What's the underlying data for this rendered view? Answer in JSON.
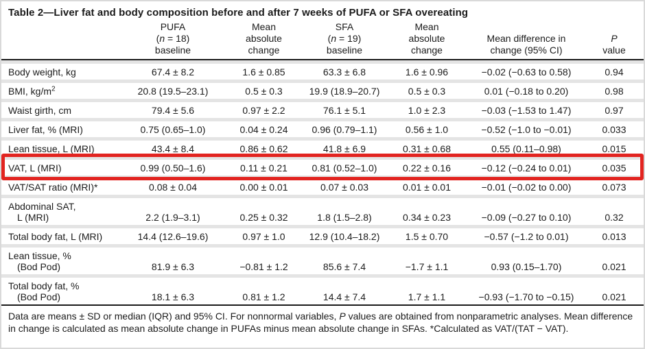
{
  "title": "Table 2—Liver fat and body composition before and after 7 weeks of PUFA or SFA overeating",
  "colors": {
    "highlight_red": "#e22420",
    "row_divider": "#e4e4e4",
    "rule_black": "#1a1a1a",
    "outer_border": "#d9d9d9",
    "text": "#1a1a1a",
    "background": "#ffffff"
  },
  "table": {
    "columns": [
      {
        "name": "row-label",
        "lines": []
      },
      {
        "name": "pufa-baseline",
        "lines": [
          "PUFA",
          "({i}n{/i} = 18)",
          "baseline"
        ]
      },
      {
        "name": "pufa-mean-absolute-change",
        "lines": [
          "Mean",
          "absolute",
          "change"
        ]
      },
      {
        "name": "sfa-baseline",
        "lines": [
          "SFA",
          "({i}n{/i} = 19)",
          "baseline"
        ]
      },
      {
        "name": "sfa-mean-absolute-change",
        "lines": [
          "Mean",
          "absolute",
          "change"
        ]
      },
      {
        "name": "mean-difference-in-change",
        "lines": [
          "Mean difference in",
          "change (95% CI)"
        ]
      },
      {
        "name": "p-value",
        "lines": [
          "{i}P{/i}",
          "value"
        ]
      }
    ],
    "rows": [
      {
        "label": [
          "Body weight, kg"
        ],
        "values": [
          "67.4 ± 8.2",
          "1.6 ± 0.85",
          "63.3 ± 6.8",
          "1.6 ± 0.96",
          "−0.02 (−0.63 to 0.58)",
          "0.94"
        ],
        "highlighted": false
      },
      {
        "label": [
          "BMI, kg/m{sup}2{/sup}"
        ],
        "values": [
          "20.8 (19.5–23.1)",
          "0.5 ± 0.3",
          "19.9 (18.9–20.7)",
          "0.5 ± 0.3",
          "0.01 (−0.18 to 0.20)",
          "0.98"
        ],
        "highlighted": false
      },
      {
        "label": [
          "Waist girth, cm"
        ],
        "values": [
          "79.4 ± 5.6",
          "0.97 ± 2.2",
          "76.1 ± 5.1",
          "1.0 ± 2.3",
          "−0.03 (−1.53 to 1.47)",
          "0.97"
        ],
        "highlighted": false
      },
      {
        "label": [
          "Liver fat, % (MRI)"
        ],
        "values": [
          "0.75 (0.65–1.0)",
          "0.04 ± 0.24",
          "0.96 (0.79–1.1)",
          "0.56 ± 1.0",
          "−0.52 (−1.0 to −0.01)",
          "0.033"
        ],
        "highlighted": false
      },
      {
        "label": [
          "Lean tissue, L (MRI)"
        ],
        "values": [
          "43.4 ± 8.4",
          "0.86 ± 0.62",
          "41.8 ± 6.9",
          "0.31 ± 0.68",
          "0.55 (0.11–0.98)",
          "0.015"
        ],
        "highlighted": false
      },
      {
        "label": [
          "VAT, L (MRI)"
        ],
        "values": [
          "0.99 (0.50–1.6)",
          "0.11 ± 0.21",
          "0.81 (0.52–1.0)",
          "0.22 ± 0.16",
          "−0.12 (−0.24 to 0.01)",
          "0.035"
        ],
        "highlighted": true
      },
      {
        "label": [
          "VAT/SAT ratio (MRI)*"
        ],
        "values": [
          "0.08 ± 0.04",
          "0.00 ± 0.01",
          "0.07 ± 0.03",
          "0.01 ± 0.01",
          "−0.01 (−0.02 to 0.00)",
          "0.073"
        ],
        "highlighted": false
      },
      {
        "label": [
          "Abdominal SAT,",
          "L (MRI)"
        ],
        "values": [
          "2.2 (1.9–3.1)",
          "0.25 ± 0.32",
          "1.8 (1.5–2.8)",
          "0.34 ± 0.23",
          "−0.09 (−0.27 to 0.10)",
          "0.32"
        ],
        "highlighted": false
      },
      {
        "label": [
          "Total body fat, L (MRI)"
        ],
        "values": [
          "14.4 (12.6–19.6)",
          "0.97 ± 1.0",
          "12.9 (10.4–18.2)",
          "1.5 ± 0.70",
          "−0.57 (−1.2 to 0.01)",
          "0.013"
        ],
        "highlighted": false
      },
      {
        "label": [
          "Lean tissue, %",
          "(Bod Pod)"
        ],
        "values": [
          "81.9 ± 6.3",
          "−0.81 ± 1.2",
          "85.6 ± 7.4",
          "−1.7 ± 1.1",
          "0.93 (0.15–1.70)",
          "0.021"
        ],
        "highlighted": false
      },
      {
        "label": [
          "Total body fat, %",
          "(Bod Pod)"
        ],
        "values": [
          "18.1 ± 6.3",
          "0.81 ± 1.2",
          "14.4 ± 7.4",
          "1.7 ± 1.1",
          "−0.93 (−1.70 to −0.15)",
          "0.021"
        ],
        "highlighted": false
      }
    ]
  },
  "highlight": {
    "row_label": "VAT, L (MRI)",
    "style": "red-annotation-box"
  },
  "footnote": "Data are means ± SD or median (IQR) and 95% CI. For nonnormal variables, {i}P{/i} values are obtained from nonparametric analyses. Mean difference in change is calculated as mean absolute change in PUFAs minus mean absolute change in SFAs. *Calculated as VAT/(TAT − VAT)."
}
